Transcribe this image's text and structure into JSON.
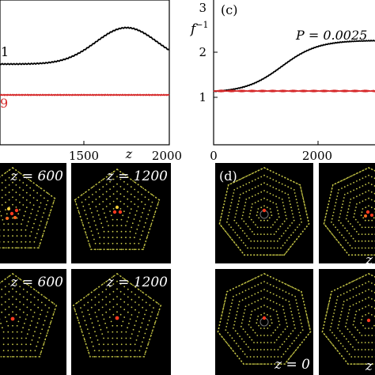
{
  "panels": {
    "b": {
      "x_ticks": [
        "1500",
        "2000"
      ],
      "x_axis_label": "z",
      "curve_labels": [
        "1",
        "9"
      ],
      "series_colors": [
        "#000000",
        "#d62728"
      ]
    },
    "c": {
      "panel_label": "(c)",
      "x_ticks": [
        "0",
        "2000"
      ],
      "y_ticks": [
        "1",
        "2",
        "3"
      ],
      "y_axis_label": "f",
      "y_axis_exponent": "−1",
      "annotation": "P = 0.0025",
      "series_colors": [
        "#000000",
        "#d62728"
      ]
    },
    "e_tiles": [
      {
        "label": "z = 600"
      },
      {
        "label": "z = 1200"
      },
      {
        "label": "z = 600"
      },
      {
        "label": "z = 1200"
      }
    ],
    "d": {
      "panel_label": "(d)",
      "tiles": [
        {
          "label": ""
        },
        {
          "label": "z"
        },
        {
          "label": "z = 0"
        },
        {
          "label": "z"
        }
      ]
    }
  }
}
